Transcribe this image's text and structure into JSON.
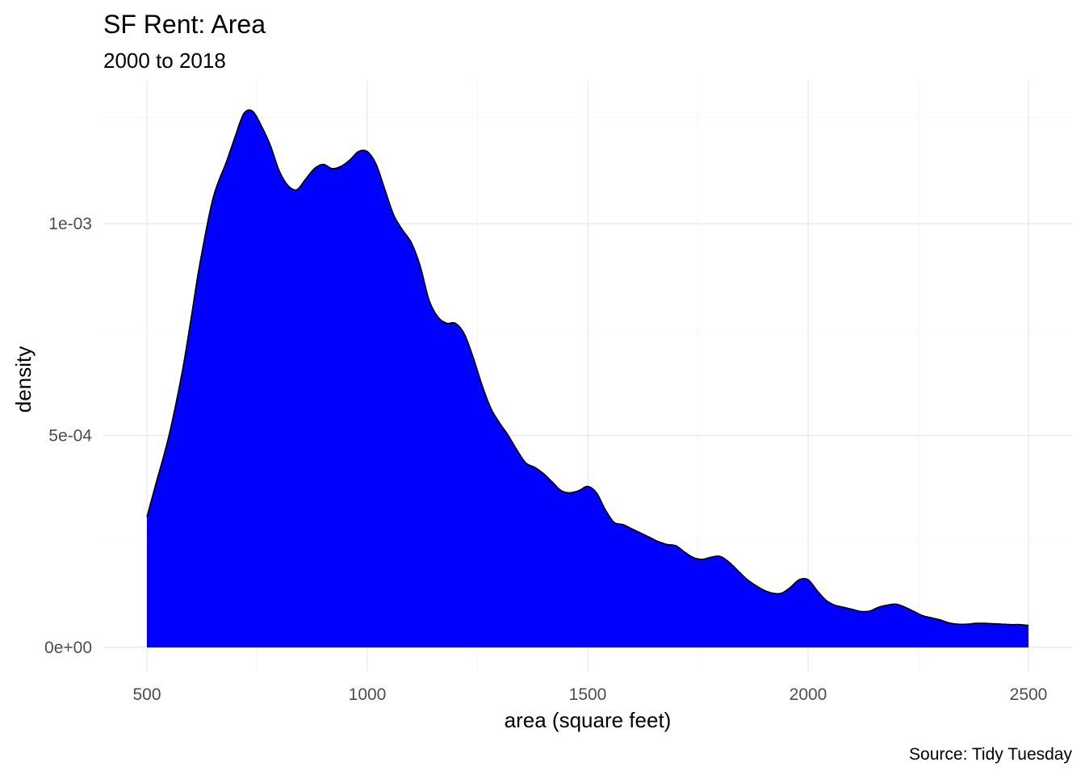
{
  "chart_data": {
    "type": "area",
    "title": "SF Rent: Area",
    "subtitle": "2000 to 2018",
    "xlabel": "area (square feet)",
    "ylabel": "density",
    "caption": "Source: Tidy Tuesday",
    "xlim": [
      500,
      2500
    ],
    "ylim": [
      0,
      0.00125
    ],
    "x_ticks": [
      500,
      1000,
      1500,
      2000,
      2500
    ],
    "x_tick_labels": [
      "500",
      "1000",
      "1500",
      "2000",
      "2500"
    ],
    "y_ticks": [
      0,
      0.0005,
      0.001
    ],
    "y_tick_labels": [
      "0e+00",
      "5e-04",
      "1e-03"
    ],
    "grid": true,
    "fill_color": "#0000ff",
    "line_color": "#000000",
    "x": [
      500,
      520,
      550,
      580,
      600,
      620,
      650,
      680,
      700,
      720,
      740,
      760,
      780,
      800,
      820,
      840,
      860,
      880,
      900,
      920,
      940,
      960,
      980,
      1000,
      1020,
      1040,
      1060,
      1080,
      1100,
      1120,
      1140,
      1160,
      1180,
      1200,
      1220,
      1240,
      1260,
      1280,
      1300,
      1320,
      1340,
      1360,
      1380,
      1400,
      1420,
      1440,
      1460,
      1480,
      1500,
      1520,
      1540,
      1560,
      1580,
      1600,
      1620,
      1640,
      1660,
      1680,
      1700,
      1720,
      1740,
      1760,
      1780,
      1800,
      1820,
      1840,
      1860,
      1880,
      1900,
      1920,
      1940,
      1960,
      1980,
      2000,
      2020,
      2040,
      2060,
      2080,
      2100,
      2120,
      2140,
      2160,
      2180,
      2200,
      2220,
      2240,
      2260,
      2280,
      2300,
      2320,
      2340,
      2360,
      2380,
      2400,
      2420,
      2440,
      2460,
      2480,
      2500
    ],
    "y": [
      0.000308,
      0.000385,
      0.0005,
      0.00065,
      0.000775,
      0.000905,
      0.00106,
      0.001145,
      0.001205,
      0.00126,
      0.001265,
      0.00123,
      0.001185,
      0.001125,
      0.00109,
      0.00108,
      0.001105,
      0.00113,
      0.00114,
      0.00113,
      0.001135,
      0.00115,
      0.00117,
      0.00117,
      0.00114,
      0.00108,
      0.00102,
      0.000985,
      0.000955,
      0.0009,
      0.00082,
      0.00078,
      0.000765,
      0.000765,
      0.00074,
      0.000685,
      0.00062,
      0.000565,
      0.00053,
      0.0005,
      0.000465,
      0.000435,
      0.000425,
      0.00041,
      0.00039,
      0.00037,
      0.000365,
      0.00037,
      0.00038,
      0.000365,
      0.000325,
      0.000295,
      0.00029,
      0.00028,
      0.00027,
      0.00026,
      0.00025,
      0.000243,
      0.00024,
      0.000225,
      0.000212,
      0.000208,
      0.000213,
      0.000215,
      0.000202,
      0.000182,
      0.000162,
      0.000147,
      0.000135,
      0.000128,
      0.000128,
      0.000142,
      0.00016,
      0.00016,
      0.000135,
      0.000112,
      0.0001,
      9.5e-05,
      9e-05,
      8.5e-05,
      8.6e-05,
      9.5e-05,
      0.0001,
      0.000102,
      9.5e-05,
      8.5e-05,
      7.5e-05,
      7e-05,
      6.5e-05,
      5.8e-05,
      5.5e-05,
      5.5e-05,
      5.7e-05,
      5.7e-05,
      5.6e-05,
      5.5e-05,
      5.4e-05,
      5.4e-05,
      5.2e-05
    ]
  }
}
